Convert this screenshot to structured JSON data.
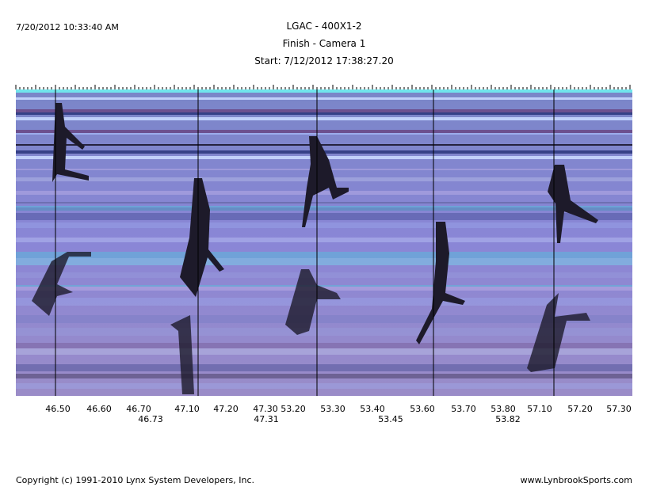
{
  "header": {
    "timestamp": "7/20/2012 10:33:40 AM",
    "title": "LGAC - 400X1-2",
    "subtitle": "Finish - Camera 1",
    "start": "Start: 7/12/2012 17:38:27.20"
  },
  "time_labels": {
    "row1": [
      "46.50",
      "46.60",
      "46.70",
      "47.10",
      "47.20",
      "47.30",
      "53.20",
      "53.30",
      "53.40",
      "53.60",
      "53.70",
      "53.80",
      "57.10",
      "57.20",
      "57.30"
    ],
    "row2": [
      "46.73",
      "47.31",
      "53.45",
      "53.82"
    ]
  },
  "footer": {
    "copyright": "Copyright (c) 1991-2010 Lynx System Developers, Inc.",
    "site": "www.LynbrookSports.com"
  }
}
